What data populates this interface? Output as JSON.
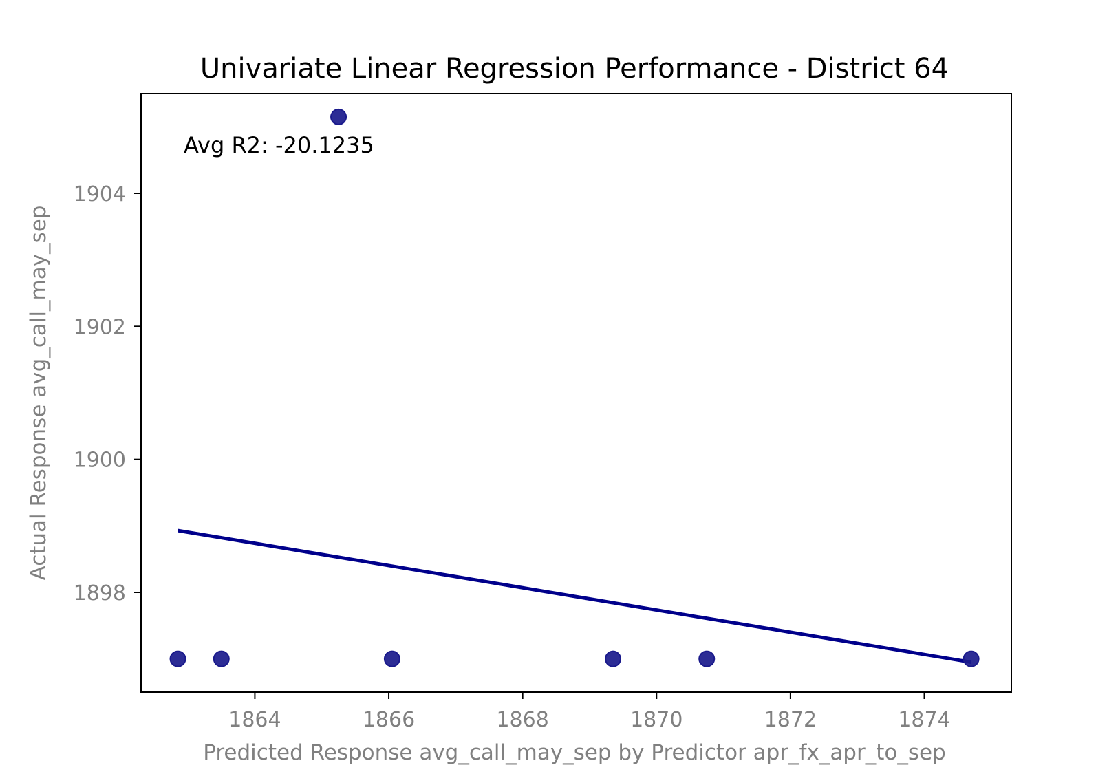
{
  "chart_data": {
    "type": "scatter",
    "title": "Univariate Linear Regression Performance - District 64",
    "xlabel": "Predicted Response avg_call_may_sep by Predictor apr_fx_apr_to_sep",
    "ylabel": "Actual Response avg_call_may_sep",
    "annotation": "Avg R2: -20.1235",
    "xlim": [
      1862.3,
      1875.3
    ],
    "ylim": [
      1896.5,
      1905.5
    ],
    "x_ticks": [
      1864,
      1866,
      1868,
      1870,
      1872,
      1874
    ],
    "y_ticks": [
      1898,
      1900,
      1902,
      1904
    ],
    "grid": false,
    "points": [
      {
        "x": 1862.85,
        "y": 1897.0
      },
      {
        "x": 1863.5,
        "y": 1897.0
      },
      {
        "x": 1865.25,
        "y": 1905.15
      },
      {
        "x": 1866.05,
        "y": 1897.0
      },
      {
        "x": 1869.35,
        "y": 1897.0
      },
      {
        "x": 1870.75,
        "y": 1897.0
      },
      {
        "x": 1874.7,
        "y": 1897.0
      }
    ],
    "fit_line": {
      "x": [
        1862.85,
        1874.7
      ],
      "y": [
        1898.93,
        1896.95
      ]
    },
    "point_color": "#1a1a8c",
    "line_color": "#00008b"
  }
}
